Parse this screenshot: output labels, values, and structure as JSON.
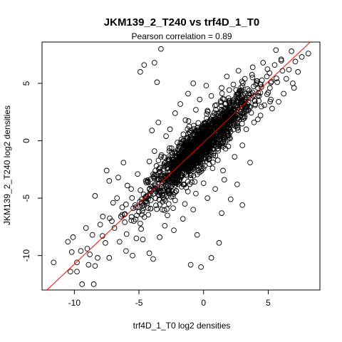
{
  "chart_data": {
    "type": "scatter",
    "title": "JKM139_2_T240 vs trf4D_1_T0",
    "subtitle": "Pearson correlation =  0.89",
    "xlabel": "trf4D_1_T0 log2 densities",
    "ylabel": "JKM139_2_T240 log2 densities",
    "xlim": [
      -12.5,
      9.0
    ],
    "ylim": [
      -13.0,
      8.6
    ],
    "x_ticks": [
      -10,
      -5,
      0,
      5
    ],
    "y_ticks": [
      -10,
      -5,
      0,
      5
    ],
    "x_tick_labels": [
      "-10",
      "-5",
      "0",
      "5"
    ],
    "y_tick_labels": [
      "-10",
      "-5",
      "0",
      "5"
    ],
    "grid": false,
    "legend": "none",
    "point_marker": "open-circle",
    "colors": {
      "points": "#000000",
      "fit_line": "#ff0000"
    },
    "fit_line": {
      "intercept": -0.15,
      "slope": 1.06
    },
    "pearson_r": 0.89,
    "points": [
      [
        -9.8,
        -10.6
      ],
      [
        -10.3,
        -11.4
      ],
      [
        -8.5,
        -12.5
      ],
      [
        -9.4,
        -12.5
      ],
      [
        -11.6,
        -10.6
      ],
      [
        -9.8,
        -11.4
      ],
      [
        -10.2,
        -9.7
      ],
      [
        -8.9,
        -10.8
      ],
      [
        -8.2,
        -10.2
      ],
      [
        -9.5,
        -9.6
      ],
      [
        -10.1,
        -8.4
      ],
      [
        -9.0,
        -9.4
      ],
      [
        -8.6,
        -8.2
      ],
      [
        -7.6,
        -8.9
      ],
      [
        -8.0,
        -7.3
      ],
      [
        -8.4,
        -10.9
      ],
      [
        -10.5,
        -8.8
      ],
      [
        -9.1,
        -7.6
      ],
      [
        -8.8,
        -9.9
      ],
      [
        -7.3,
        -10.2
      ],
      [
        -6.9,
        -7.6
      ],
      [
        -7.8,
        -6.6
      ],
      [
        -8.4,
        -4.8
      ],
      [
        -7.0,
        -5.4
      ],
      [
        -6.5,
        -8.8
      ],
      [
        -6.0,
        -9.6
      ],
      [
        -5.5,
        -10.0
      ],
      [
        -5.2,
        -8.5
      ],
      [
        -4.2,
        -9.8
      ],
      [
        -4.9,
        -7.2
      ],
      [
        -3.4,
        -8.4
      ],
      [
        -3.9,
        -10.3
      ],
      [
        -2.3,
        -7.8
      ],
      [
        -1.0,
        -10.8
      ],
      [
        -0.5,
        -8.2
      ],
      [
        -0.2,
        -11.0
      ],
      [
        0.6,
        -10.2
      ],
      [
        1.2,
        -8.9
      ],
      [
        -2.8,
        -6.5
      ],
      [
        -6.4,
        -6.6
      ],
      [
        -7.3,
        -3.5
      ],
      [
        -6.6,
        -3.2
      ],
      [
        -7.5,
        -2.6
      ],
      [
        -6.2,
        -1.9
      ],
      [
        -5.6,
        -4.2
      ],
      [
        -5.3,
        -5.6
      ],
      [
        -5.0,
        -6.2
      ],
      [
        -4.5,
        -5.3
      ],
      [
        -3.9,
        -2.9
      ],
      [
        -4.3,
        -3.6
      ],
      [
        -3.7,
        -4.4
      ],
      [
        -3.2,
        -6.0
      ],
      [
        -2.7,
        -5.5
      ],
      [
        -2.2,
        -5.2
      ],
      [
        -1.7,
        -4.0
      ],
      [
        -2.5,
        -3.3
      ],
      [
        -1.6,
        -6.8
      ],
      [
        -0.8,
        -6.0
      ],
      [
        -0.6,
        -4.6
      ],
      [
        0.3,
        -5.0
      ],
      [
        0.9,
        -4.2
      ],
      [
        1.4,
        -6.3
      ],
      [
        2.1,
        -5.1
      ],
      [
        1.6,
        -3.4
      ],
      [
        2.6,
        -3.8
      ],
      [
        3.0,
        -5.6
      ],
      [
        -3.3,
        -1.4
      ],
      [
        -3.8,
        -0.9
      ],
      [
        -4.2,
        -1.8
      ],
      [
        -2.9,
        0.4
      ],
      [
        -3.5,
        1.6
      ],
      [
        -4.0,
        0.9
      ],
      [
        -2.6,
        1.0
      ],
      [
        -2.2,
        2.4
      ],
      [
        -1.4,
        1.8
      ],
      [
        -1.8,
        3.2
      ],
      [
        -1.0,
        0.9
      ],
      [
        -0.6,
        2.7
      ],
      [
        -0.3,
        3.6
      ],
      [
        -1.2,
        4.1
      ],
      [
        -0.8,
        5.0
      ],
      [
        0.2,
        4.8
      ],
      [
        0.6,
        3.9
      ],
      [
        1.4,
        4.6
      ],
      [
        1.8,
        5.6
      ],
      [
        2.3,
        4.9
      ],
      [
        2.7,
        6.1
      ],
      [
        3.2,
        5.4
      ],
      [
        3.8,
        6.4
      ],
      [
        4.1,
        5.2
      ],
      [
        4.6,
        6.8
      ],
      [
        5.1,
        5.9
      ],
      [
        5.5,
        6.6
      ],
      [
        6.0,
        7.1
      ],
      [
        6.4,
        5.4
      ],
      [
        7.1,
        6.9
      ],
      [
        7.6,
        7.3
      ],
      [
        6.8,
        7.8
      ],
      [
        8.1,
        7.6
      ],
      [
        7.0,
        4.6
      ],
      [
        6.2,
        4.1
      ],
      [
        5.8,
        3.4
      ],
      [
        5.3,
        2.8
      ],
      [
        4.7,
        3.1
      ],
      [
        4.4,
        2.2
      ],
      [
        3.6,
        2.9
      ],
      [
        3.9,
        1.6
      ],
      [
        3.3,
        1.0
      ],
      [
        2.6,
        2.2
      ],
      [
        2.1,
        0.8
      ],
      [
        1.7,
        -0.7
      ],
      [
        2.4,
        -1.4
      ],
      [
        3.0,
        -0.4
      ],
      [
        3.6,
        -1.9
      ],
      [
        1.1,
        -1.7
      ],
      [
        1.5,
        -2.6
      ],
      [
        0.7,
        -2.4
      ],
      [
        0.2,
        -1.2
      ],
      [
        -0.4,
        -2.6
      ],
      [
        0.9,
        1.4
      ],
      [
        0.3,
        0.6
      ],
      [
        -0.2,
        -0.5
      ],
      [
        -0.7,
        -1.1
      ],
      [
        -1.5,
        -2.3
      ],
      [
        -2.0,
        -1.9
      ],
      [
        -2.4,
        -1.1
      ],
      [
        -1.3,
        0.2
      ],
      [
        -5.1,
        -2.9
      ],
      [
        -5.9,
        -3.9
      ],
      [
        -6.7,
        -5.0
      ],
      [
        -6.1,
        -7.1
      ],
      [
        -5.4,
        -7.0
      ],
      [
        -4.7,
        -8.6
      ],
      [
        -3.0,
        -7.4
      ],
      [
        -4.6,
        6.6
      ],
      [
        -4.9,
        6.0
      ],
      [
        -3.8,
        6.8
      ],
      [
        -3.6,
        5.1
      ],
      [
        -3.3,
        8.0
      ],
      [
        -6.3,
        -5.8
      ],
      [
        -7.1,
        -7.0
      ],
      [
        -4.1,
        -4.7
      ],
      [
        -2.1,
        -3.7
      ],
      [
        -1.0,
        -3.0
      ],
      [
        0.0,
        -3.7
      ],
      [
        1.0,
        -0.2
      ],
      [
        1.9,
        1.6
      ],
      [
        2.9,
        3.3
      ],
      [
        3.5,
        4.0
      ],
      [
        4.2,
        4.6
      ],
      [
        5.0,
        4.2
      ],
      [
        5.7,
        5.1
      ],
      [
        6.6,
        6.2
      ],
      [
        4.9,
        5.6
      ],
      [
        5.6,
        7.9
      ],
      [
        6.1,
        6.1
      ],
      [
        7.3,
        6.0
      ],
      [
        6.9,
        5.0
      ],
      [
        5.2,
        3.6
      ],
      [
        4.3,
        3.9
      ]
    ]
  }
}
